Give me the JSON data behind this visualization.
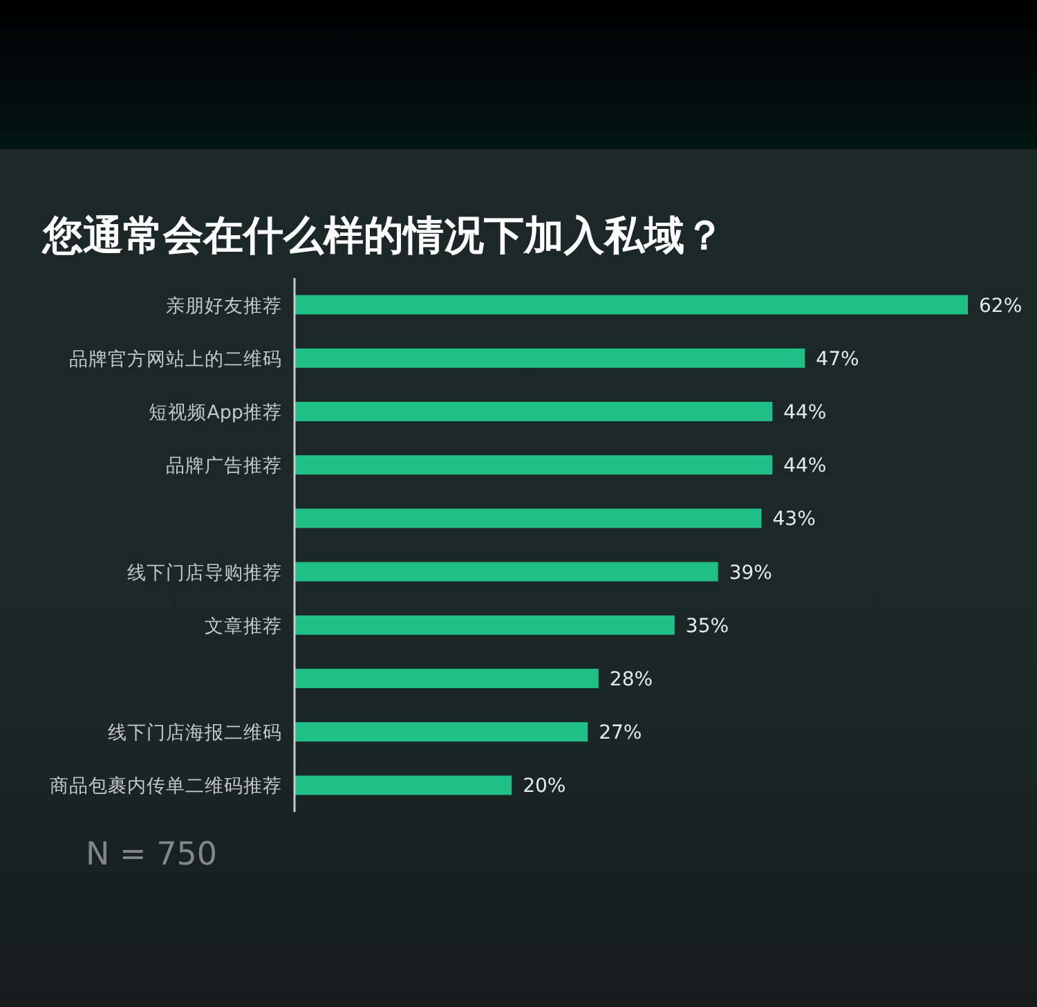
{
  "chart_data": {
    "type": "bar",
    "orientation": "horizontal",
    "title": "您通常会在什么样的情况下加入私域？",
    "categories": [
      "亲朋好友推荐",
      "品牌官方网站上的二维码",
      "短视频App推荐",
      "品牌广告推荐",
      null,
      "线下门店导购推荐",
      "文章推荐",
      null,
      "线下门店海报二维码",
      "商品包裹内传单二维码推荐"
    ],
    "values": [
      62,
      47,
      44,
      44,
      43,
      39,
      35,
      28,
      27,
      20
    ],
    "color": "#21bf88",
    "value_labels": [
      "62%",
      "47%",
      "44%",
      "44%",
      "43%",
      "39%",
      "35%",
      "28%",
      "27%",
      "20%"
    ],
    "annotations": [
      "N = 750"
    ]
  }
}
